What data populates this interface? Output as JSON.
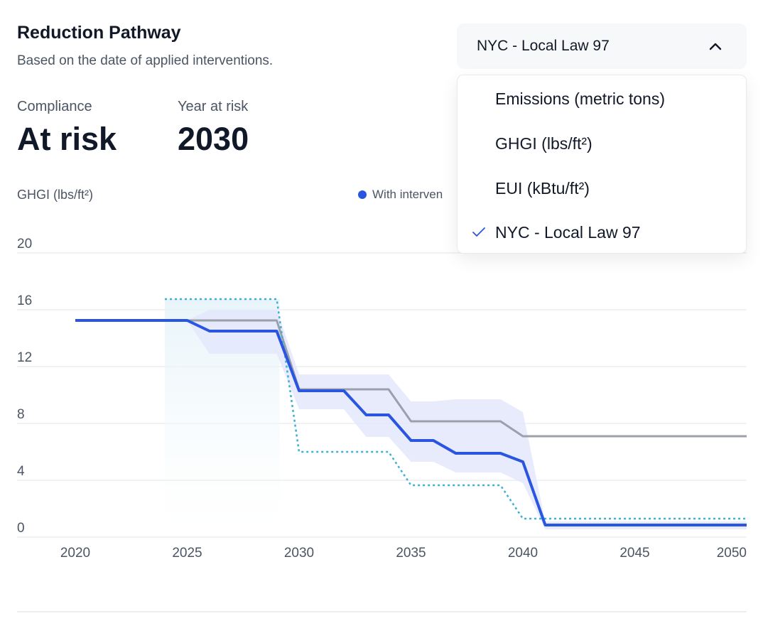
{
  "header": {
    "title": "Reduction Pathway",
    "subtitle": "Based on the date of applied interventions."
  },
  "stats": {
    "compliance_label": "Compliance",
    "compliance_value": "At risk",
    "year_label": "Year at risk",
    "year_value": "2030"
  },
  "dropdown": {
    "selected": "NYC - Local Law 97",
    "expanded": true,
    "options": [
      {
        "label": "Emissions (metric tons)",
        "checked": false
      },
      {
        "label": "GHGI (lbs/ft²)",
        "checked": false
      },
      {
        "label": "EUI (kBtu/ft²)",
        "checked": false
      },
      {
        "label": "NYC - Local Law 97",
        "checked": true
      }
    ]
  },
  "colors": {
    "with_interventions": "#2a55e0",
    "baseline": "#9ca0ab",
    "target": "#3fb0d5",
    "band": "#e3e8fb",
    "check": "#2a55e0"
  },
  "chart_data": {
    "type": "line",
    "ylabel": "GHGI (lbs/ft²)",
    "xlabel": "",
    "xlim": [
      2020,
      2050
    ],
    "ylim": [
      0,
      20
    ],
    "xticks": [
      "2020",
      "2025",
      "2030",
      "2035",
      "2040",
      "2045",
      "2050"
    ],
    "yticks": [
      "0",
      "4",
      "8",
      "12",
      "16",
      "20"
    ],
    "grid": true,
    "legend": [
      {
        "label": "With interven",
        "color": "#2a55e0"
      }
    ],
    "legend_position": "top",
    "series": [
      {
        "name": "With interven",
        "style": "solid",
        "x": [
          2020,
          2025,
          2026,
          2029,
          2030,
          2032,
          2033,
          2034,
          2035,
          2036,
          2037,
          2039,
          2040,
          2041,
          2050
        ],
        "y": [
          15.25,
          15.25,
          14.5,
          14.5,
          10.3,
          10.3,
          8.6,
          8.6,
          6.8,
          6.8,
          5.9,
          5.9,
          5.3,
          0.85,
          0.85
        ]
      },
      {
        "style": "solid-gray",
        "x": [
          2025,
          2029,
          2030,
          2034,
          2035,
          2039,
          2040,
          2050
        ],
        "y": [
          15.25,
          15.25,
          10.4,
          10.4,
          8.15,
          8.15,
          7.1,
          7.1
        ]
      },
      {
        "style": "dotted",
        "x": [
          2024,
          2029,
          2030,
          2034,
          2035,
          2039,
          2040,
          2050
        ],
        "y": [
          16.75,
          16.75,
          6.0,
          6.0,
          3.65,
          3.65,
          1.3,
          1.3
        ]
      }
    ],
    "band": {
      "x": [
        2025,
        2026,
        2029,
        2030,
        2032,
        2033,
        2034,
        2035,
        2036,
        2037,
        2039,
        2040,
        2041,
        2050
      ],
      "upper": [
        15.25,
        16.0,
        16.0,
        11.45,
        11.45,
        11.45,
        11.45,
        9.55,
        9.55,
        9.7,
        9.7,
        8.8,
        1.1,
        1.1
      ],
      "lower": [
        15.25,
        12.9,
        12.9,
        9.0,
        9.0,
        7.05,
        7.05,
        5.3,
        5.3,
        4.55,
        4.55,
        3.8,
        0.55,
        0.55
      ]
    }
  }
}
